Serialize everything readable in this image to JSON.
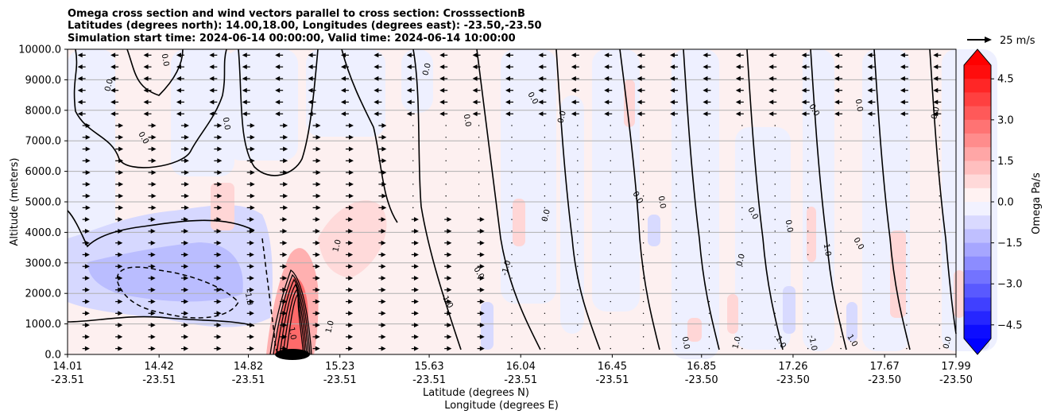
{
  "chart_data": {
    "type": "contour",
    "title_lines": [
      "Omega cross section and wind vectors parallel to cross section: CrosssectionB",
      "Latitudes (degrees north): 14.00,18.00, Longitudes (degrees east): -23.50,-23.50",
      "Simulation start time: 2024-06-14 00:00:00, Valid time: 2024-06-14 10:00:00"
    ],
    "xlabel_lat": "Latitude (degrees N)",
    "xlabel_lon": "Longitude (degrees E)",
    "ylabel": "Altitude (meters)",
    "x_ticks": [
      {
        "lat": "14.01",
        "lon": "-23.51"
      },
      {
        "lat": "14.42",
        "lon": "-23.51"
      },
      {
        "lat": "14.82",
        "lon": "-23.51"
      },
      {
        "lat": "15.23",
        "lon": "-23.51"
      },
      {
        "lat": "15.63",
        "lon": "-23.51"
      },
      {
        "lat": "16.04",
        "lon": "-23.51"
      },
      {
        "lat": "16.45",
        "lon": "-23.51"
      },
      {
        "lat": "16.85",
        "lon": "-23.50"
      },
      {
        "lat": "17.26",
        "lon": "-23.50"
      },
      {
        "lat": "17.67",
        "lon": "-23.50"
      },
      {
        "lat": "17.99",
        "lon": "-23.50"
      }
    ],
    "y_ticks": [
      "0.0",
      "1000.0",
      "2000.0",
      "3000.0",
      "4000.0",
      "5000.0",
      "6000.0",
      "7000.0",
      "8000.0",
      "9000.0",
      "10000.0"
    ],
    "ylim": [
      0,
      10000
    ],
    "xlim": [
      14.01,
      17.99
    ],
    "grid": "horizontal",
    "colorbar": {
      "label": "Omega Pa/s",
      "ticks": [
        "4.5",
        "3.0",
        "1.5",
        "0.0",
        "−1.5",
        "−3.0",
        "−4.5"
      ],
      "range": [
        -5,
        5
      ],
      "extend": "both",
      "colormap": "bwr"
    },
    "quiver_key": {
      "label": "25 m/s"
    },
    "contour_labels": [
      "0.0",
      "0.0",
      "0.0",
      "0.0",
      "0.0",
      "0.0",
      "0.0",
      "0.0",
      "0.0",
      "0.0",
      "0.0",
      "0.0",
      "0.0",
      "0.0",
      "0.0",
      "0.0",
      "1.0",
      "-1.0",
      "-1.0",
      "0.0",
      "0.0",
      "1.0",
      "1.0",
      "1.0",
      "1.0",
      "1.0",
      "1.0",
      "-1.0",
      "-1.0",
      "0.0",
      "0.0",
      "0.0"
    ],
    "colors": {
      "positive": "#ff0000",
      "negative": "#0000ff",
      "contour": "#000000",
      "grid": "#b0b0b0"
    }
  }
}
